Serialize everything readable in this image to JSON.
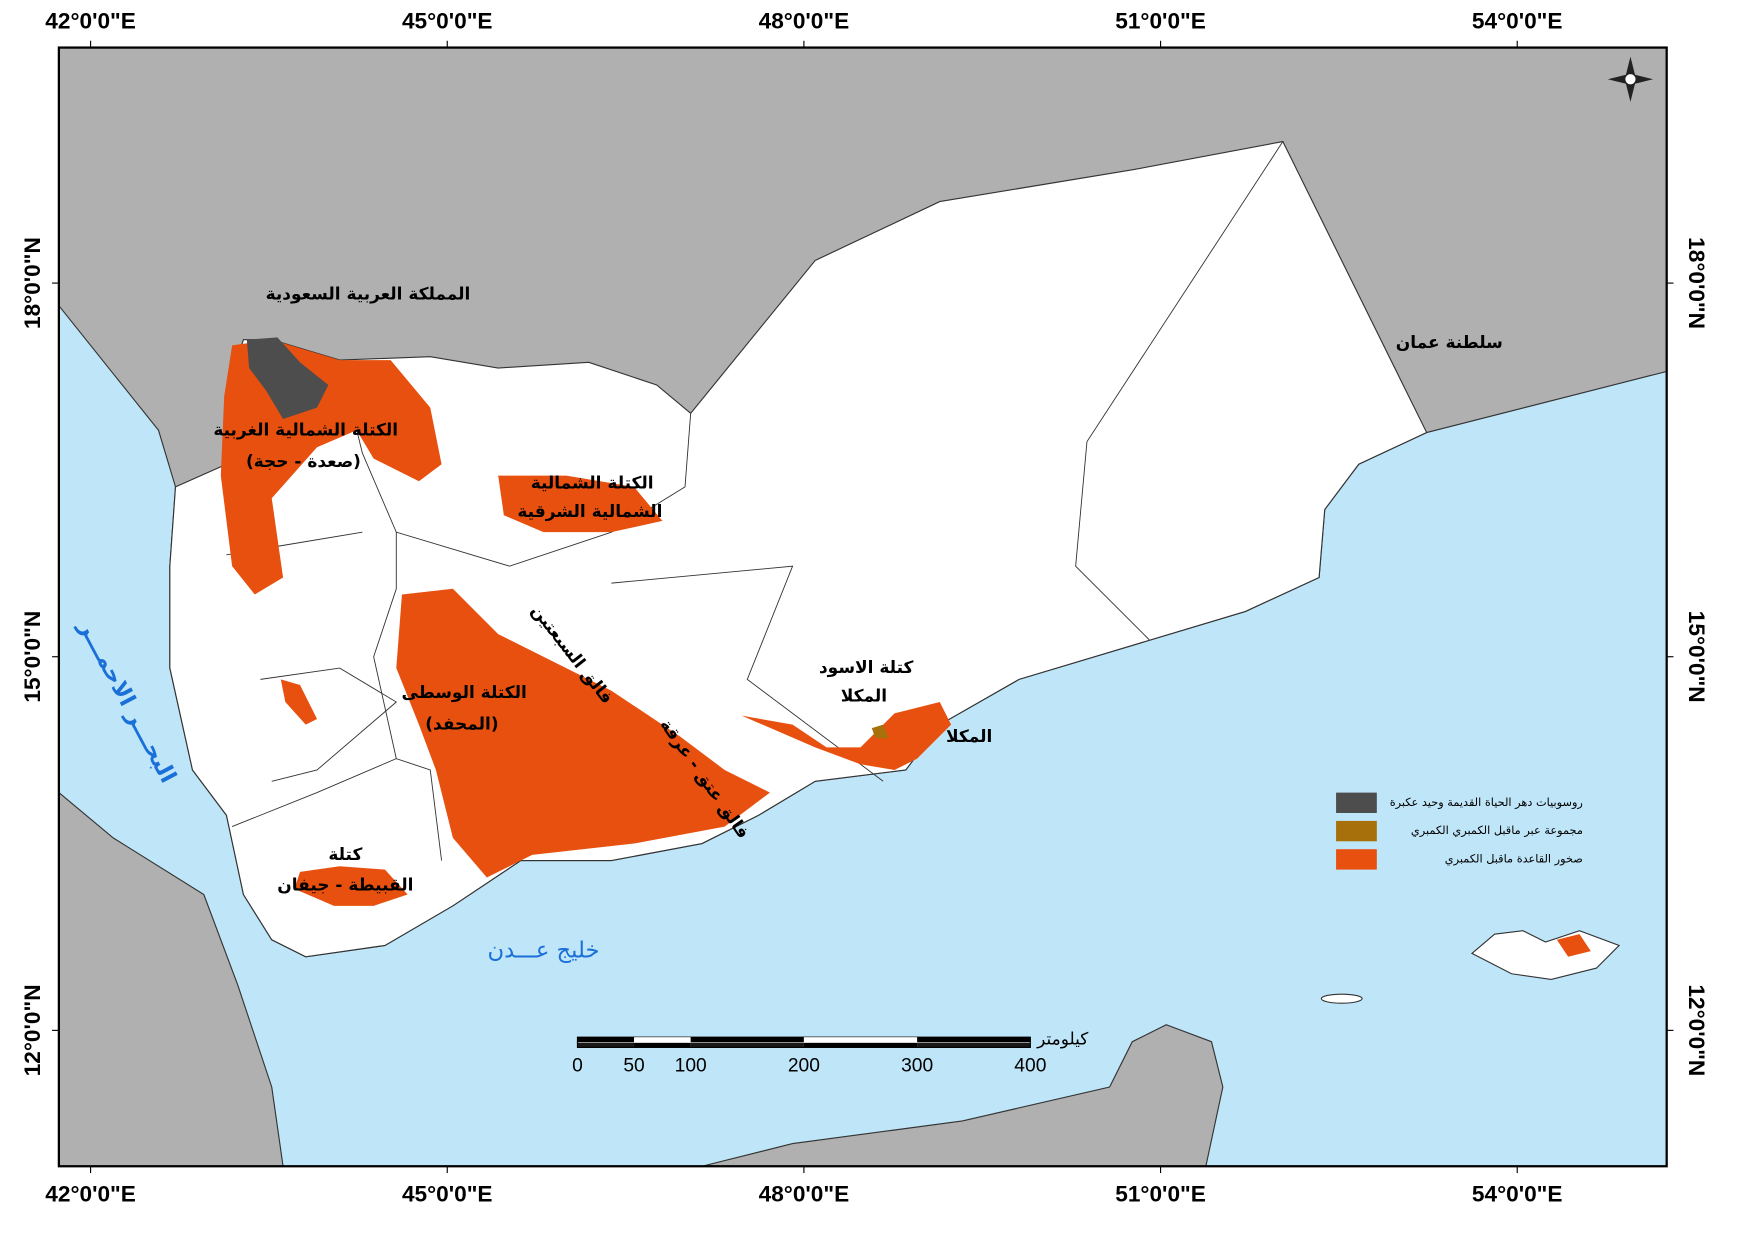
{
  "map": {
    "longitudes": [
      {
        "value": 42,
        "label": "42°0'0\"E"
      },
      {
        "value": 45,
        "label": "45°0'0\"E"
      },
      {
        "value": 48,
        "label": "48°0'0\"E"
      },
      {
        "value": 51,
        "label": "51°0'0\"E"
      },
      {
        "value": 54,
        "label": "54°0'0\"E"
      }
    ],
    "latitudes": [
      {
        "value": 18,
        "label": "18°0'0\"N"
      },
      {
        "value": 15,
        "label": "15°0'0\"N"
      },
      {
        "value": 12,
        "label": "12°0'0\"N"
      }
    ],
    "labels": [
      "المملكة العربية السعودية",
      "سلطنة عمان",
      "الكتلة الشمالية الغربية",
      "(صعدة - حجة)",
      "الكتلة الشمالية",
      "الشمالية الشرقية",
      "الكتلة الوسطى",
      "(المحفد)",
      "كتلة الاسود",
      "المكلا",
      "المكلا",
      "كتلة",
      "القبيطة - جيفان",
      "فالق السبعتين",
      "فالق عتق - عرقة"
    ],
    "water_labels": [
      "خليج عـــدن",
      "البحـــر الاحمـــر"
    ],
    "legend": [
      {
        "label": "روسوبيات دهر الحياة القديمة وحيد عكبرة",
        "color": "#4d4d4d"
      },
      {
        "label": "مجموعة عبر ماقبل الكمبري الكمبري",
        "color": "#a8700a"
      },
      {
        "label": "صخور القاعدة ماقبل الكمبري",
        "color": "#e8500f"
      }
    ],
    "scale_bar": {
      "unit": "كيلومتر",
      "ticks": [
        0,
        50,
        100,
        200,
        300,
        400
      ]
    }
  }
}
